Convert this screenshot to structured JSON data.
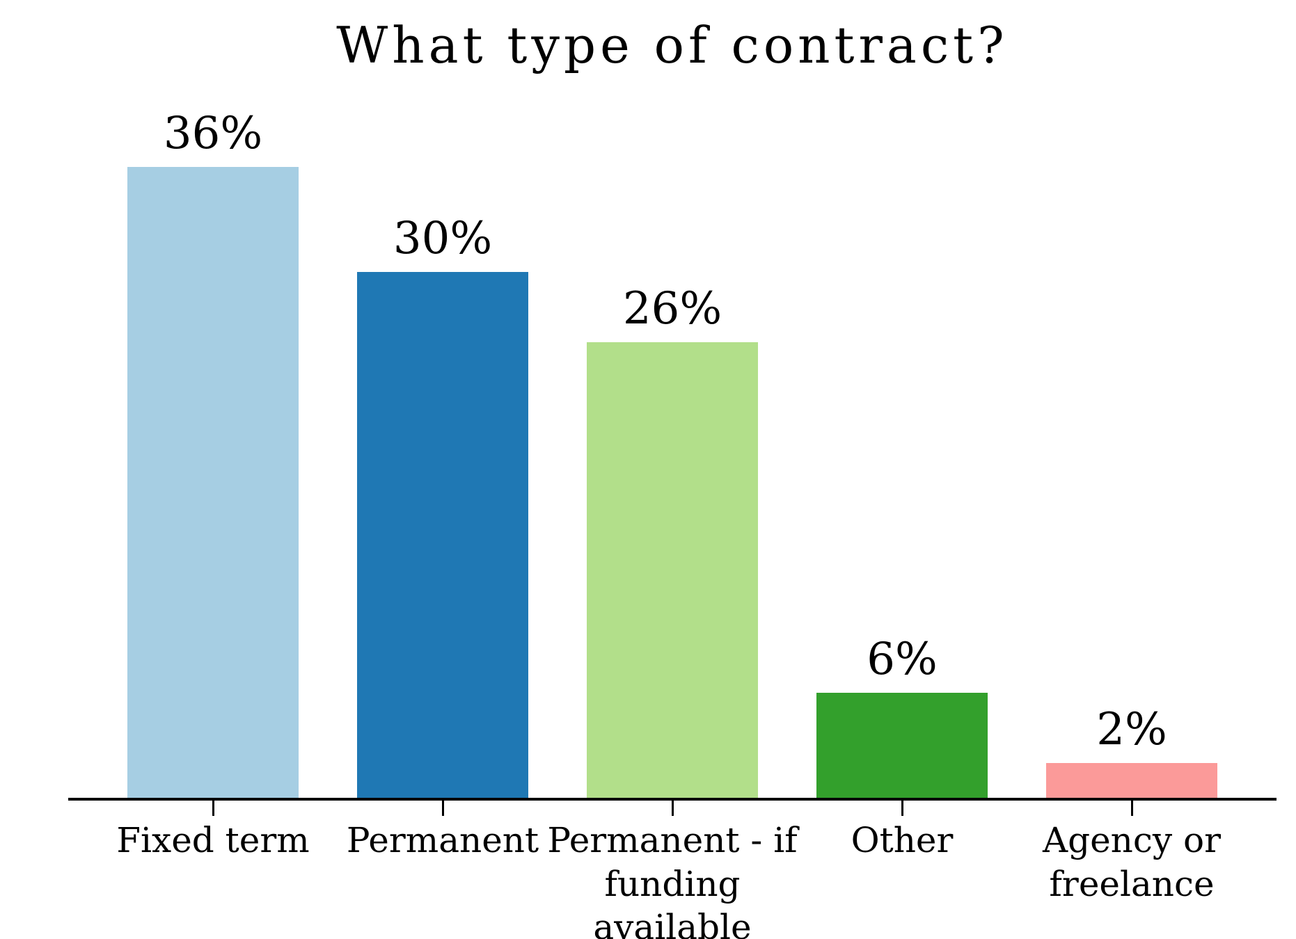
{
  "page": {
    "background": "#ffffff",
    "text_color": "#000000"
  },
  "chart_data": {
    "type": "bar",
    "title": "What type of contract?",
    "categories": [
      "Fixed term",
      "Permanent",
      "Permanent - if funding available",
      "Other",
      "Agency or freelance"
    ],
    "values": [
      36,
      30,
      26,
      6,
      2
    ],
    "value_labels": [
      "36%",
      "30%",
      "26%",
      "6%",
      "2%"
    ],
    "bar_colors": [
      "#a6cee3",
      "#1f78b4",
      "#b2df8a",
      "#33a02c",
      "#fb9a99"
    ],
    "axis_color": "#000000",
    "text_color": "#000000",
    "xlabel": "",
    "ylabel": "",
    "ylim": [
      0,
      36
    ],
    "grid": false,
    "legend": null,
    "y_axis_visible": false,
    "data_labels_position": "above-bars"
  }
}
